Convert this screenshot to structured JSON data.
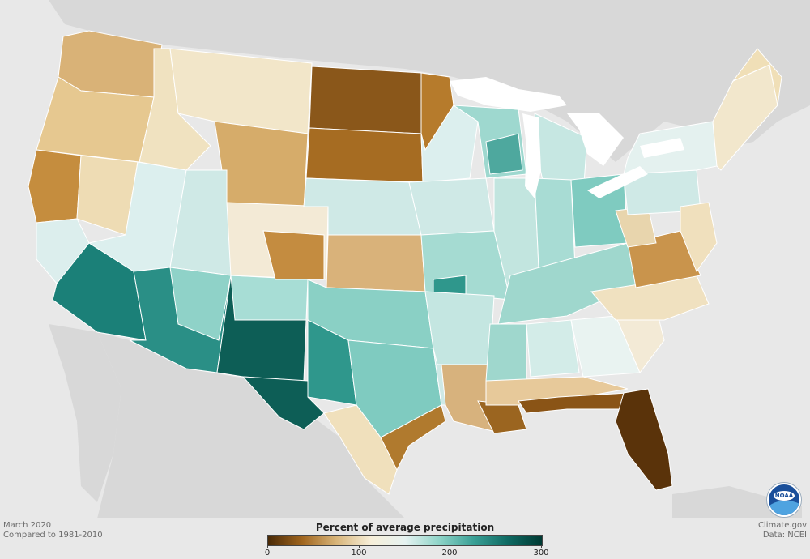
{
  "map": {
    "legend": {
      "title": "Percent of average precipitation",
      "ticks": [
        "0",
        "100",
        "200",
        "300"
      ],
      "gradient": [
        "#4a2a07",
        "#a0651e",
        "#d8b57a",
        "#f7efd9",
        "#e6f2f1",
        "#8ed4c8",
        "#3aa096",
        "#0f6a63",
        "#003a33"
      ]
    },
    "footer": {
      "date": "March 2020",
      "compared": "Compared to 1981-2010",
      "source": "Climate.gov",
      "data": "Data: NCEI"
    },
    "logo": {
      "name": "noaa-logo",
      "text": "NOAA"
    },
    "colors": {
      "background": "#e8e8e8",
      "land_other": "#d6d6d6",
      "state_border": "#ffffff",
      "lakes": "#ffffff"
    }
  }
}
